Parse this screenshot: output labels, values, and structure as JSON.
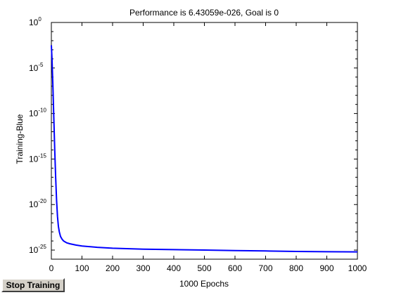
{
  "chart_data": {
    "type": "line",
    "title": "Performance is 6.43059e-026, Goal is 0",
    "xlabel": "1000 Epochs",
    "ylabel": "Training-Blue",
    "xlim": [
      0,
      1000
    ],
    "ylim_exp": [
      -26,
      0
    ],
    "yscale": "log",
    "xticks": [
      "0",
      "100",
      "200",
      "300",
      "400",
      "500",
      "600",
      "700",
      "800",
      "900",
      "1000"
    ],
    "xtick_values": [
      0,
      100,
      200,
      300,
      400,
      500,
      600,
      700,
      800,
      900,
      1000
    ],
    "yticks": [
      {
        "base": "10",
        "exp": "0",
        "value_exp": 0
      },
      {
        "base": "10",
        "exp": "-5",
        "value_exp": -5
      },
      {
        "base": "10",
        "exp": "-10",
        "value_exp": -10
      },
      {
        "base": "10",
        "exp": "-15",
        "value_exp": -15
      },
      {
        "base": "10",
        "exp": "-20",
        "value_exp": -20
      },
      {
        "base": "10",
        "exp": "-25",
        "value_exp": -25
      }
    ],
    "series": [
      {
        "color": "#0000ff",
        "x": [
          0,
          2,
          5,
          8,
          11,
          14,
          17,
          20,
          23,
          26,
          30,
          35,
          40,
          50,
          60,
          80,
          100,
          150,
          200,
          300,
          400,
          500,
          600,
          700,
          800,
          900,
          1000
        ],
        "y_exp": [
          -2.5,
          -4,
          -7,
          -10.5,
          -14,
          -17,
          -19.5,
          -21.3,
          -22.4,
          -23.0,
          -23.5,
          -23.8,
          -24.0,
          -24.2,
          -24.3,
          -24.45,
          -24.55,
          -24.7,
          -24.8,
          -24.9,
          -24.95,
          -25.0,
          -25.05,
          -25.1,
          -25.15,
          -25.18,
          -25.2
        ]
      }
    ]
  },
  "controls": {
    "stop_button_label": "Stop Training"
  }
}
